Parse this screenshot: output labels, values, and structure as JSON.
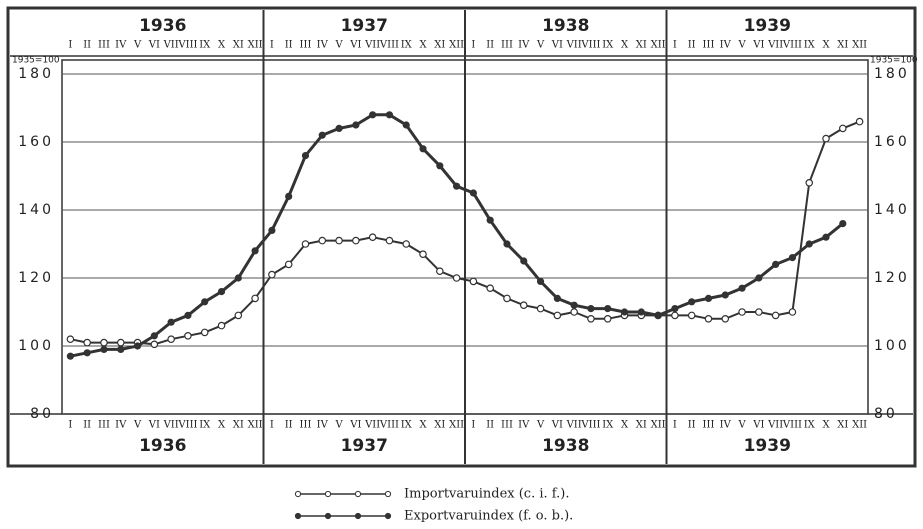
{
  "chart_data": {
    "type": "line",
    "y_label": "1935=100",
    "years": [
      "1936",
      "1937",
      "1938",
      "1939"
    ],
    "categories": [
      "I",
      "II",
      "III",
      "IV",
      "V",
      "VI",
      "VII",
      "VIII",
      "IX",
      "X",
      "XI",
      "XII",
      "I",
      "II",
      "III",
      "IV",
      "V",
      "VI",
      "VII",
      "VIII",
      "IX",
      "X",
      "XI",
      "XII",
      "I",
      "II",
      "III",
      "IV",
      "V",
      "VI",
      "VII",
      "VIII",
      "IX",
      "X",
      "XI",
      "XII",
      "I",
      "II",
      "III",
      "IV",
      "V",
      "VI",
      "VII",
      "VIII",
      "IX",
      "X",
      "XI",
      "XII"
    ],
    "series": [
      {
        "name": "Importvaruindex (c. i. f.).",
        "color": "#333333",
        "marker": "open",
        "values": [
          102,
          101,
          101,
          101,
          101,
          100.5,
          102,
          103,
          104,
          106,
          109,
          114,
          121,
          124,
          130,
          131,
          131,
          131,
          132,
          131,
          130,
          127,
          122,
          120,
          119,
          117,
          114,
          112,
          111,
          109,
          110,
          108,
          108,
          109,
          109,
          109,
          109,
          109,
          108,
          108,
          110,
          110,
          109,
          110,
          148,
          161,
          164,
          166
        ]
      },
      {
        "name": "Exportvaruindex (f. o. b.).",
        "color": "#333333",
        "marker": "filled",
        "values": [
          97,
          98,
          99,
          99,
          100,
          103,
          107,
          109,
          113,
          116,
          120,
          128,
          134,
          144,
          156,
          162,
          164,
          165,
          168,
          168,
          165,
          158,
          153,
          147,
          145,
          137,
          130,
          125,
          119,
          114,
          112,
          111,
          111,
          110,
          110,
          109,
          111,
          113,
          114,
          115,
          117,
          120,
          124,
          126,
          130,
          132,
          136,
          null
        ]
      }
    ],
    "ylim": [
      80,
      180
    ],
    "yticks": [
      80,
      100,
      120,
      140,
      160,
      180
    ],
    "grid": true
  }
}
